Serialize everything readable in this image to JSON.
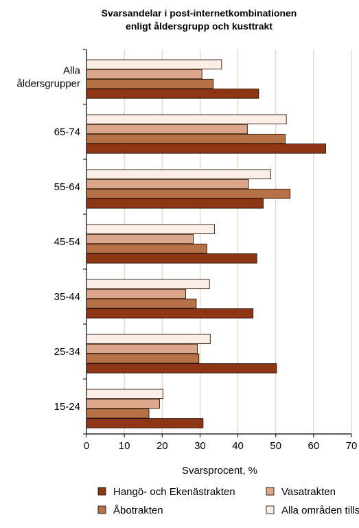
{
  "chart_data": {
    "type": "bar",
    "orientation": "horizontal",
    "title_lines": [
      "Svarsandelar i post-internetkombinationen",
      "enligt åldersgrupp och kusttrakt"
    ],
    "xlabel": "Svarsprocent, %",
    "xlim": [
      0,
      70
    ],
    "xticks": [
      0,
      10,
      20,
      30,
      40,
      50,
      60,
      70
    ],
    "categories": [
      [
        "Alla",
        "åldersgrupper"
      ],
      [
        "65-74"
      ],
      [
        "55-64"
      ],
      [
        "45-54"
      ],
      [
        "35-44"
      ],
      [
        "25-34"
      ],
      [
        "15-24"
      ]
    ],
    "series": [
      {
        "name": "Alla områden tillsammans",
        "color": "#fbeee6",
        "values": [
          35.7,
          52.8,
          48.7,
          33.8,
          32.5,
          32.7,
          20.2
        ]
      },
      {
        "name": "Vasatrakten",
        "color": "#dba68a",
        "values": [
          30.5,
          42.5,
          42.8,
          28.2,
          26.2,
          29.3,
          19.3
        ]
      },
      {
        "name": "Åbotrakten",
        "color": "#b77147",
        "values": [
          33.5,
          52.5,
          53.8,
          31.8,
          29.0,
          29.7,
          16.5
        ]
      },
      {
        "name": "Hangö- och Ekenästrakten",
        "color": "#8e3515",
        "values": [
          45.5,
          63.2,
          46.7,
          45.0,
          44.0,
          50.2,
          30.8
        ]
      }
    ],
    "grid": true,
    "legend_position": "bottom",
    "legend_rows": [
      [
        "Hangö- och Ekenästrakten",
        "Vasatrakten"
      ],
      [
        "Åbotrakten",
        "Alla områden tillsammans"
      ]
    ]
  }
}
